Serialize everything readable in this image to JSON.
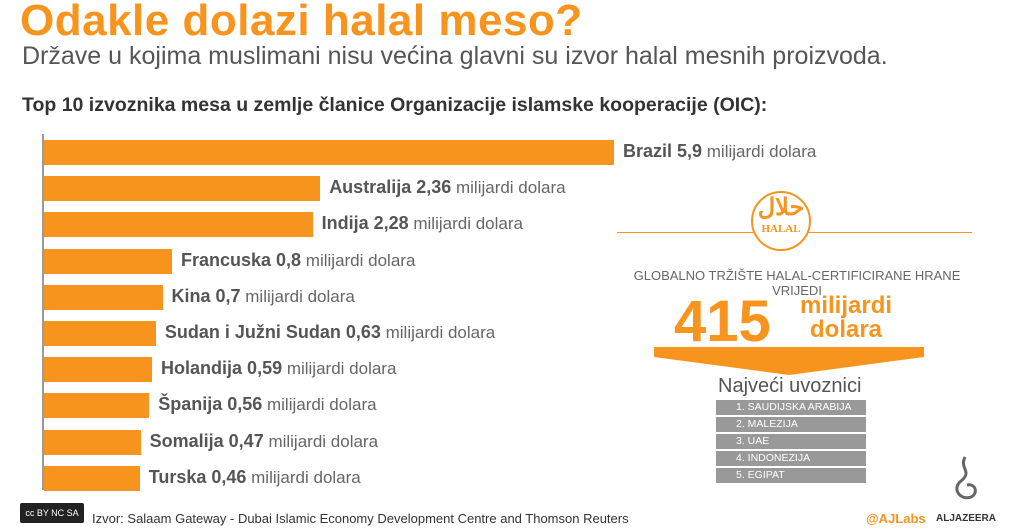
{
  "title": "Odakle dolazi halal meso?",
  "subtitle": "Države u kojima muslimani nisu većina glavni su izvor halal mesnih proizvoda.",
  "chart_data": {
    "type": "bar",
    "title": "Top 10 izvoznika mesa u zemlje članice Organizacije islamske kooperacije (OIC):",
    "unit": "milijardi dolara",
    "categories": [
      "Brazil",
      "Australija",
      "Indija",
      "Francuska",
      "Kina",
      "Sudan i Južni Sudan",
      "Holandija",
      "Španija",
      "Somalija",
      "Turska"
    ],
    "values": [
      5.9,
      2.36,
      2.28,
      0.8,
      0.7,
      0.63,
      0.59,
      0.56,
      0.47,
      0.46
    ],
    "value_labels": [
      "5,9",
      "2,36",
      "2,28",
      "0,8",
      "0,7",
      "0,63",
      "0,59",
      "0,56",
      "0,47",
      "0,46"
    ],
    "orientation": "horizontal",
    "color": "#f7941d"
  },
  "halal": {
    "arabic": "حلال",
    "latin": "HALAL",
    "global_text": "GLOBALNO TRŽIŠTE HALAL-CERTIFICIRANE HRANE VRIJEDI",
    "big_number": "415",
    "big_unit_1": "milijardi",
    "big_unit_2": "dolara"
  },
  "importers": {
    "title": "Najveći uvoznici",
    "items": [
      "1. SAUDIJSKA ARABIJA",
      "2. MALEZIJA",
      "3. UAE",
      "4. INDONEZIJA",
      "5. EGIPAT"
    ]
  },
  "footer": {
    "license": "cc BY NC SA",
    "source": "Izvor: Salaam Gateway - Dubai Islamic Economy Development Centre and Thomson Reuters",
    "handle": "@AJLabs",
    "brand": "ALJAZEERA"
  }
}
